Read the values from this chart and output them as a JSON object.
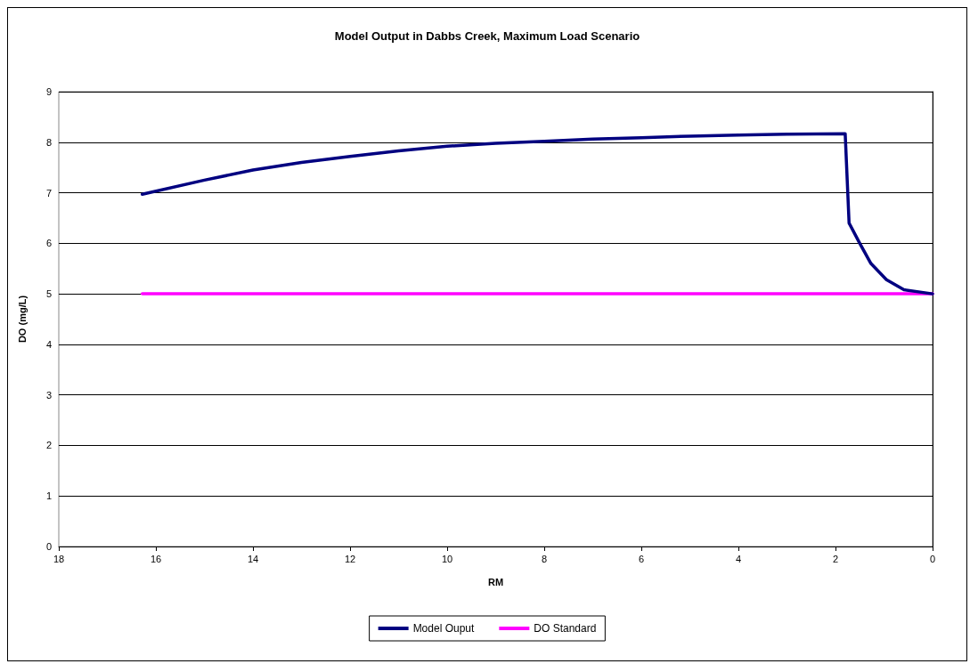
{
  "chart_data": {
    "type": "line",
    "title": "Model Output in Dabbs Creek, Maximum Load Scenario",
    "xlabel": "RM",
    "ylabel": "DO (mg/L)",
    "xlim": [
      18,
      0
    ],
    "xticks": [
      18,
      16,
      14,
      12,
      10,
      8,
      6,
      4,
      2,
      0
    ],
    "ylim": [
      0,
      9
    ],
    "yticks": [
      0,
      1,
      2,
      3,
      4,
      5,
      6,
      7,
      8,
      9
    ],
    "grid": "y",
    "legend": "bottom",
    "marker": "none",
    "line_style": "solid",
    "series": [
      {
        "name": "Model Ouput",
        "color": "#000080",
        "x": [
          16.28,
          15,
          14,
          13,
          12,
          11,
          10,
          9,
          8,
          7,
          6,
          5,
          4,
          3,
          1.8,
          1.72,
          1.5,
          1.27,
          0.95,
          0.59,
          0
        ],
        "values": [
          6.97,
          7.25,
          7.45,
          7.6,
          7.72,
          7.83,
          7.92,
          7.98,
          8.02,
          8.06,
          8.09,
          8.12,
          8.14,
          8.16,
          8.17,
          6.4,
          6.0,
          5.6,
          5.28,
          5.08,
          5.0
        ]
      },
      {
        "name": "DO Standard",
        "color": "#ff00ff",
        "x": [
          16.28,
          0
        ],
        "values": [
          5,
          5
        ]
      }
    ]
  }
}
